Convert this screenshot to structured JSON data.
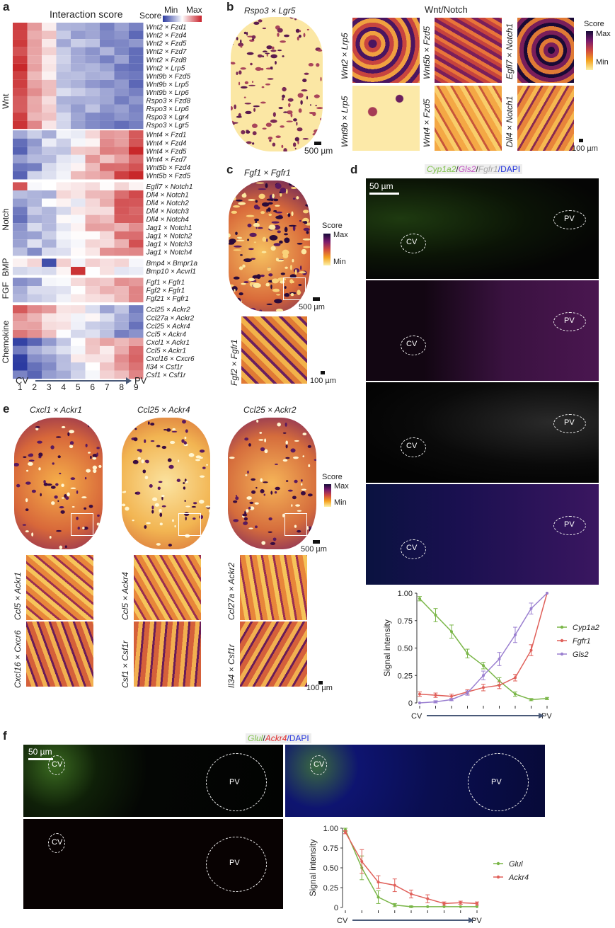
{
  "panels": {
    "a": "a",
    "b": "b",
    "c": "c",
    "d": "d",
    "e": "e",
    "f": "f"
  },
  "panel_a": {
    "title": "Interaction score",
    "legend_label": "Score",
    "legend_min": "Min",
    "legend_max": "Max",
    "groups": [
      "Wnt",
      "Notch",
      "BMP",
      "FGF",
      "Chemokine"
    ],
    "columns": [
      "1",
      "2",
      "3",
      "4",
      "5",
      "6",
      "7",
      "8",
      "9"
    ],
    "axis_start": "CV",
    "axis_end": "PV",
    "rows": [
      "Wnt2 × Fzd1",
      "Wnt2 × Fzd4",
      "Wnt2 × Fzd5",
      "Wnt2 × Fzd7",
      "Wnt2 × Fzd8",
      "Wnt2 × Lrp5",
      "Wnt9b × Fzd5",
      "Wnt9b × Lrp5",
      "Wnt9b × Lrp6",
      "Rspo3 × Fzd8",
      "Rspo3 × Lrp6",
      "Rspo3 × Lgr4",
      "Rspo3 × Lgr5",
      "Wnt4 × Fzd1",
      "Wnt4 × Fzd4",
      "Wnt4 × Fzd5",
      "Wnt4 × Fzd7",
      "Wnt5b × Fzd4",
      "Wnt5b × Fzd5",
      "Egfl7 × Notch1",
      "Dll4 × Notch1",
      "Dll4 × Notch2",
      "Dll4 × Notch3",
      "Dll4 × Notch4",
      "Jag1 × Notch1",
      "Jag1 × Notch2",
      "Jag1 × Notch3",
      "Jag1 × Notch4",
      "Bmp4 × Bmpr1a",
      "Bmp10 × Acvrl1",
      "Fgf1 × Fgfr1",
      "Fgf2 × Fgfr1",
      "Fgf21 × Fgfr1",
      "Ccl25 × Ackr2",
      "Ccl27a × Ackr2",
      "Ccl25 × Ackr4",
      "Ccl5 × Ackr4",
      "Cxcl1 × Ackr1",
      "Ccl5 × Ackr1",
      "Cxcl16 × Cxcr6",
      "Il34 × Csf1r",
      "Csf1 × Csf1r"
    ]
  },
  "panel_b": {
    "main_label": "Rspo3 × Lgr5",
    "group_title": "Wnt/Notch",
    "tiles": [
      "Wnt2 × Lrp5",
      "Wnt5b × Fzd5",
      "Egfl7 × Notch1",
      "Wnt9b × Lrp5",
      "Wnt4 × Fzd5",
      "Dll4 × Notch1"
    ],
    "scale_main": "500 µm",
    "scale_tiles": "100 µm",
    "legend_label": "Score",
    "legend_max": "Max",
    "legend_min": "Min"
  },
  "panel_c": {
    "main_label": "Fgf1 × Fgfr1",
    "tile_label": "Fgf2 × Fgfr1",
    "scale_main": "500 µm",
    "scale_tile": "100 µm",
    "legend_label": "Score",
    "legend_max": "Max",
    "legend_min": "Min"
  },
  "panel_d": {
    "title_parts": [
      "Cyp1a2",
      "/",
      "Gls2",
      "/",
      "Fgfr1",
      "/DAPI"
    ],
    "title_colors": [
      "#7fc24a",
      "#555",
      "#c04fc0",
      "#555",
      "#aaaaaa",
      "#2233dd"
    ],
    "scale": "50 µm",
    "cv": "CV",
    "pv": "PV"
  },
  "panel_e": {
    "mains": [
      "Cxcl1 × Ackr1",
      "Ccl25 × Ackr4",
      "Ccl25 × Ackr2"
    ],
    "tiles_top": [
      "Ccl5 × Ackr1",
      "Ccl5 × Ackr4",
      "Ccl27a × Ackr2"
    ],
    "tiles_bottom": [
      "Cxcl16 × Cxcr6",
      "Csf1 × Csf1r",
      "Il34 × Csf1r"
    ],
    "scale_main": "500 µm",
    "scale_tiles": "100 µm",
    "legend_label": "Score",
    "legend_max": "Max",
    "legend_min": "Min"
  },
  "panel_f": {
    "title_parts": [
      "Glul",
      "/",
      "Ackr4",
      "/DAPI"
    ],
    "title_colors": [
      "#7fc24a",
      "#555",
      "#e03030",
      "#2233dd"
    ],
    "scale": "50 µm",
    "cv": "CV",
    "pv": "PV"
  },
  "chart_data": [
    {
      "type": "line",
      "panel": "d",
      "ylabel": "Signal intensity",
      "xlabel_start": "CV",
      "xlabel_end": "PV",
      "x": [
        1,
        2,
        3,
        4,
        5,
        6,
        7,
        8,
        9
      ],
      "ylim": [
        0,
        1.0
      ],
      "yticks": [
        "0",
        "0.25",
        "0.50",
        "0.75",
        "1.00"
      ],
      "series": [
        {
          "name": "Cyp1a2",
          "color": "#7ab648",
          "values": [
            0.95,
            0.8,
            0.65,
            0.45,
            0.34,
            0.2,
            0.08,
            0.03,
            0.04
          ],
          "err": [
            0.02,
            0.06,
            0.06,
            0.04,
            0.03,
            0.03,
            0.02,
            0.01,
            0.01
          ]
        },
        {
          "name": "Fgfr1",
          "color": "#e0605a",
          "values": [
            0.08,
            0.07,
            0.06,
            0.1,
            0.14,
            0.16,
            0.23,
            0.48,
            1.0
          ],
          "err": [
            0.02,
            0.02,
            0.02,
            0.02,
            0.03,
            0.03,
            0.03,
            0.05,
            0.0
          ]
        },
        {
          "name": "Gls2",
          "color": "#9a7fd0",
          "values": [
            0.0,
            0.01,
            0.03,
            0.09,
            0.25,
            0.4,
            0.62,
            0.86,
            1.0
          ],
          "err": [
            0.0,
            0.01,
            0.01,
            0.02,
            0.04,
            0.06,
            0.07,
            0.05,
            0.0
          ]
        }
      ]
    },
    {
      "type": "line",
      "panel": "f",
      "ylabel": "Signal intensity",
      "xlabel_start": "CV",
      "xlabel_end": "PV",
      "x": [
        1,
        2,
        3,
        4,
        5,
        6,
        7,
        8,
        9
      ],
      "ylim": [
        0,
        1.0
      ],
      "yticks": [
        "0",
        "0.25",
        "0.50",
        "0.75",
        "1.00"
      ],
      "series": [
        {
          "name": "Glul",
          "color": "#7ab648",
          "values": [
            0.98,
            0.5,
            0.13,
            0.03,
            0.01,
            0.01,
            0.01,
            0.01,
            0.01
          ],
          "err": [
            0.02,
            0.15,
            0.08,
            0.02,
            0.01,
            0.0,
            0.0,
            0.0,
            0.0
          ]
        },
        {
          "name": "Ackr4",
          "color": "#e0605a",
          "values": [
            0.95,
            0.58,
            0.32,
            0.28,
            0.17,
            0.11,
            0.05,
            0.06,
            0.05
          ],
          "err": [
            0.02,
            0.15,
            0.08,
            0.08,
            0.05,
            0.05,
            0.02,
            0.02,
            0.02
          ]
        }
      ]
    }
  ]
}
